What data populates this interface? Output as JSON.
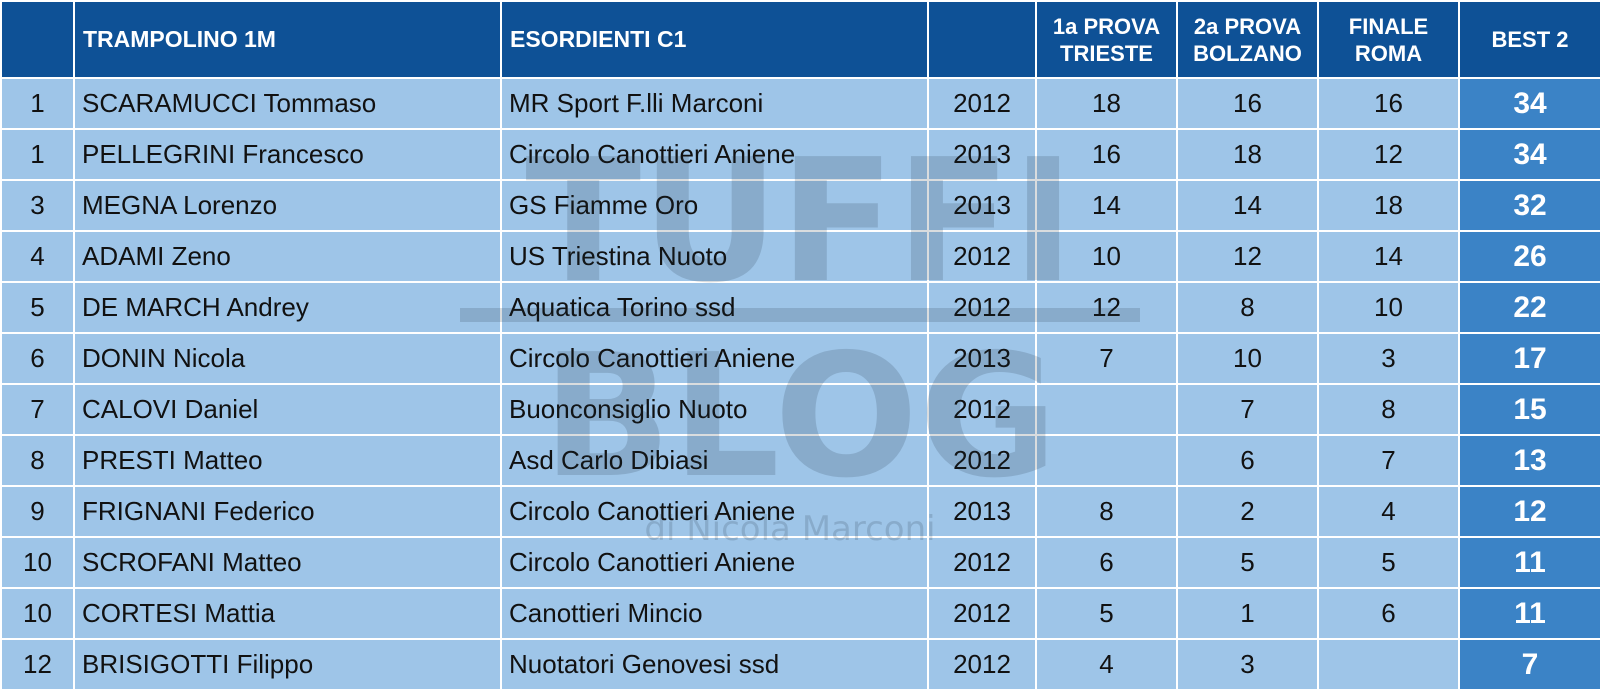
{
  "header": {
    "event": "TRAMPOLINO 1M",
    "category": "ESORDIENTI C1",
    "prova1_line1": "1a PROVA",
    "prova1_line2": "TRIESTE",
    "prova2_line1": "2a PROVA",
    "prova2_line2": "BOLZANO",
    "finale_line1": "FINALE",
    "finale_line2": "ROMA",
    "best": "BEST 2"
  },
  "rows": [
    {
      "rank": "1",
      "name": "SCARAMUCCI Tommaso",
      "club": "MR Sport F.lli Marconi",
      "year": "2012",
      "p1": "18",
      "p2": "16",
      "fin": "16",
      "best": "34"
    },
    {
      "rank": "1",
      "name": "PELLEGRINI Francesco",
      "club": "Circolo Canottieri Aniene",
      "year": "2013",
      "p1": "16",
      "p2": "18",
      "fin": "12",
      "best": "34"
    },
    {
      "rank": "3",
      "name": "MEGNA Lorenzo",
      "club": "GS Fiamme Oro",
      "year": "2013",
      "p1": "14",
      "p2": "14",
      "fin": "18",
      "best": "32"
    },
    {
      "rank": "4",
      "name": "ADAMI Zeno",
      "club": "US Triestina Nuoto",
      "year": "2012",
      "p1": "10",
      "p2": "12",
      "fin": "14",
      "best": "26"
    },
    {
      "rank": "5",
      "name": "DE MARCH Andrey",
      "club": "Aquatica Torino ssd",
      "year": "2012",
      "p1": "12",
      "p2": "8",
      "fin": "10",
      "best": "22"
    },
    {
      "rank": "6",
      "name": "DONIN Nicola",
      "club": "Circolo Canottieri Aniene",
      "year": "2013",
      "p1": "7",
      "p2": "10",
      "fin": "3",
      "best": "17"
    },
    {
      "rank": "7",
      "name": "CALOVI Daniel",
      "club": "Buonconsiglio Nuoto",
      "year": "2012",
      "p1": "",
      "p2": "7",
      "fin": "8",
      "best": "15"
    },
    {
      "rank": "8",
      "name": "PRESTI Matteo",
      "club": "Asd Carlo Dibiasi",
      "year": "2012",
      "p1": "",
      "p2": "6",
      "fin": "7",
      "best": "13"
    },
    {
      "rank": "9",
      "name": "FRIGNANI Federico",
      "club": "Circolo Canottieri Aniene",
      "year": "2013",
      "p1": "8",
      "p2": "2",
      "fin": "4",
      "best": "12"
    },
    {
      "rank": "10",
      "name": "SCROFANI Matteo",
      "club": "Circolo Canottieri Aniene",
      "year": "2012",
      "p1": "6",
      "p2": "5",
      "fin": "5",
      "best": "11"
    },
    {
      "rank": "10",
      "name": "CORTESI Mattia",
      "club": "Canottieri Mincio",
      "year": "2012",
      "p1": "5",
      "p2": "1",
      "fin": "6",
      "best": "11"
    },
    {
      "rank": "12",
      "name": "BRISIGOTTI Filippo",
      "club": "Nuotatori Genovesi ssd",
      "year": "2012",
      "p1": "4",
      "p2": "3",
      "fin": "",
      "best": "7"
    }
  ],
  "watermark": {
    "line1": "TUFFI",
    "line2": "BLOG",
    "byline": "di Nicola Marconi"
  },
  "colors": {
    "header_bg": "#0e5196",
    "row_bg": "#9ec5e8",
    "best_bg": "#3b83c6"
  }
}
